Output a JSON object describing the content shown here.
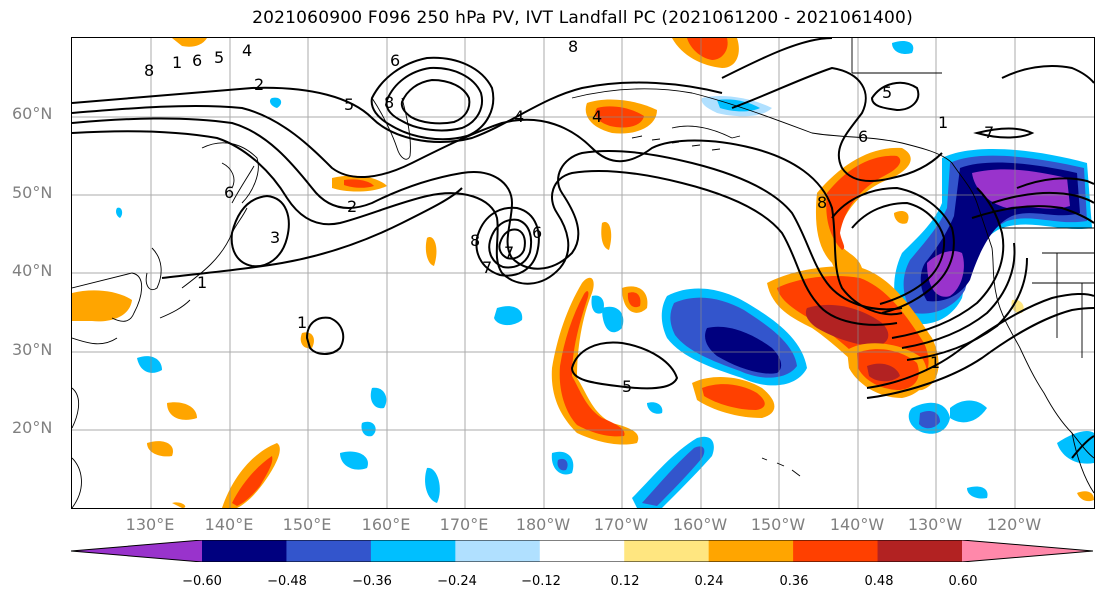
{
  "title": "2021060900 F096 250 hPa PV, IVT Landfall PC (2021061200 - 2021061400)",
  "lat_labels": [
    "60°N",
    "50°N",
    "40°N",
    "30°N",
    "20°N"
  ],
  "lon_labels": [
    "130°E",
    "140°E",
    "150°E",
    "160°E",
    "170°E",
    "180°W",
    "170°W",
    "160°W",
    "150°W",
    "140°W",
    "130°W",
    "120°W"
  ],
  "colorbar": {
    "ticks": [
      "−0.60",
      "−0.48",
      "−0.36",
      "−0.24",
      "−0.12",
      "0.12",
      "0.24",
      "0.36",
      "0.48",
      "0.60"
    ],
    "colors": [
      "#9933cc",
      "#00007f",
      "#3355cc",
      "#00bfff",
      "#b0e0ff",
      "#ffffff",
      "#ffe680",
      "#ffa500",
      "#ff4000",
      "#b22222",
      "#ff88aa"
    ]
  },
  "contour_labels": [
    "8",
    "1",
    "6",
    "5",
    "4",
    "2",
    "6",
    "5",
    "8",
    "8",
    "4",
    "6",
    "2",
    "3",
    "1",
    "8",
    "7",
    "6",
    "7",
    "1",
    "5",
    "1",
    "1",
    "8",
    "7",
    "6",
    "4",
    "5"
  ]
}
